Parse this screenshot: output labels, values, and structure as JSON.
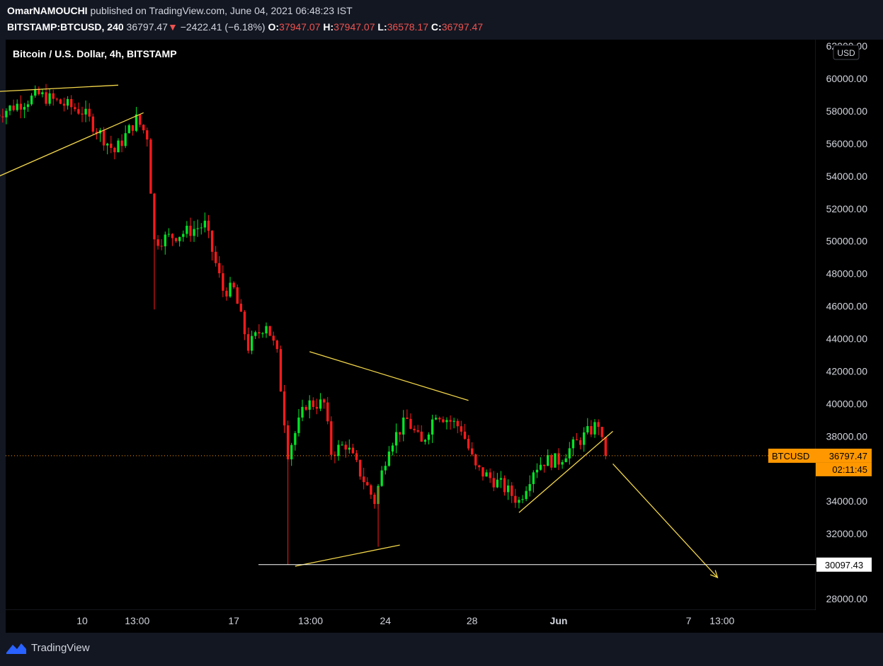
{
  "header": {
    "author": "OmarNAMOUCHI",
    "published_text": "published on TradingView.com, June 04, 2021 06:48:23 IST",
    "symbol": "BITSTAMP:BTCUSD, 240",
    "price": "36797.47",
    "change_arrow": "▼",
    "change": "−2422.41 (−6.18%)",
    "open_label": "O:",
    "open": "37947.07",
    "high_label": "H:",
    "high": "37947.07",
    "low_label": "L:",
    "low": "36578.17",
    "close_label": "C:",
    "close": "36797.47"
  },
  "footer": {
    "brand": "TradingView"
  },
  "colors": {
    "background": "#000000",
    "frame": "#131722",
    "up": "#26a69a",
    "up_candle": "#00e626",
    "down_candle": "#ff1a1a",
    "drawing": "#f2d64a",
    "price_label": "#ff9800",
    "support_line": "#ffffff"
  },
  "chart_data": {
    "type": "candlestick",
    "title": "Bitcoin / U.S. Dollar, 4h, BITSTAMP",
    "currency": "USD",
    "ylim": [
      27300,
      62400
    ],
    "y_ticks": [
      "28000.00",
      "30000.00",
      "32000.00",
      "34000.00",
      "36000.00",
      "38000.00",
      "40000.00",
      "42000.00",
      "44000.00",
      "46000.00",
      "48000.00",
      "50000.00",
      "52000.00",
      "54000.00",
      "56000.00",
      "58000.00",
      "60000.00",
      "62000.00"
    ],
    "x_ticks": [
      {
        "label": "10",
        "date": "2021-05-10T00:00"
      },
      {
        "label": "13:00",
        "date": "2021-05-12T13:00"
      },
      {
        "label": "17",
        "date": "2021-05-17T00:00"
      },
      {
        "label": "13:00",
        "date": "2021-05-20T13:00"
      },
      {
        "label": "24",
        "date": "2021-05-24T00:00"
      },
      {
        "label": "28",
        "date": "2021-05-28T00:00"
      },
      {
        "label": "Jun",
        "date": "2021-06-01T00:00"
      },
      {
        "label": "7",
        "date": "2021-06-07T00:00"
      },
      {
        "label": "13:00",
        "date": "2021-06-08T13:00"
      }
    ],
    "current_price": {
      "symbol": "BTCUSD",
      "price": "36797.47",
      "countdown": "02:11:45",
      "value": 36797.47
    },
    "support_level": {
      "label": "30097.43",
      "value": 30097.43
    },
    "key_prices": [
      {
        "date": "2021-05-06T00:00",
        "price": 57800
      },
      {
        "date": "2021-05-08T00:00",
        "price": 59000
      },
      {
        "date": "2021-05-10T00:00",
        "price": 58000
      },
      {
        "date": "2021-05-11T12:00",
        "price": 55500
      },
      {
        "date": "2021-05-12T12:00",
        "price": 57500
      },
      {
        "date": "2021-05-13T00:00",
        "price": 56500
      },
      {
        "date": "2021-05-13T08:00",
        "price": 50000
      },
      {
        "date": "2021-05-14T16:00",
        "price": 50500
      },
      {
        "date": "2021-05-15T16:00",
        "price": 51000
      },
      {
        "date": "2021-05-16T12:00",
        "price": 47000
      },
      {
        "date": "2021-05-17T00:00",
        "price": 47000
      },
      {
        "date": "2021-05-17T16:00",
        "price": 43500
      },
      {
        "date": "2021-05-18T12:00",
        "price": 45000
      },
      {
        "date": "2021-05-19T00:00",
        "price": 43000
      },
      {
        "date": "2021-05-19T12:00",
        "price": 37000
      },
      {
        "date": "2021-05-20T08:00",
        "price": 40000
      },
      {
        "date": "2021-05-21T04:00",
        "price": 40000
      },
      {
        "date": "2021-05-21T12:00",
        "price": 37000
      },
      {
        "date": "2021-05-22T04:00",
        "price": 37500
      },
      {
        "date": "2021-05-23T12:00",
        "price": 34000
      },
      {
        "date": "2021-05-24T04:00",
        "price": 37500
      },
      {
        "date": "2021-05-25T00:00",
        "price": 39000
      },
      {
        "date": "2021-05-25T16:00",
        "price": 37500
      },
      {
        "date": "2021-05-26T08:00",
        "price": 39500
      },
      {
        "date": "2021-05-27T12:00",
        "price": 38500
      },
      {
        "date": "2021-05-28T04:00",
        "price": 36000
      },
      {
        "date": "2021-05-29T08:00",
        "price": 35000
      },
      {
        "date": "2021-05-30T04:00",
        "price": 34000
      },
      {
        "date": "2021-05-30T20:00",
        "price": 36000
      },
      {
        "date": "2021-05-31T08:00",
        "price": 36500
      },
      {
        "date": "2021-06-01T00:00",
        "price": 36500
      },
      {
        "date": "2021-06-01T08:00",
        "price": 37000
      },
      {
        "date": "2021-06-02T04:00",
        "price": 38000
      },
      {
        "date": "2021-06-02T20:00",
        "price": 38800
      },
      {
        "date": "2021-06-03T00:00",
        "price": 37947.07
      },
      {
        "date": "2021-06-03T04:00",
        "price": 36797.47
      }
    ],
    "drawings": [
      {
        "kind": "line",
        "points": [
          {
            "date": "2021-05-06T00:00",
            "price": 59200
          },
          {
            "date": "2021-05-11T16:00",
            "price": 59600
          }
        ]
      },
      {
        "kind": "line",
        "points": [
          {
            "date": "2021-05-06T00:00",
            "price": 53900
          },
          {
            "date": "2021-05-12T20:00",
            "price": 57900
          }
        ]
      },
      {
        "kind": "line",
        "points": [
          {
            "date": "2021-05-20T12:00",
            "price": 43200
          },
          {
            "date": "2021-05-27T20:00",
            "price": 40200
          }
        ]
      },
      {
        "kind": "line",
        "points": [
          {
            "date": "2021-05-19T20:00",
            "price": 30000
          },
          {
            "date": "2021-05-24T16:00",
            "price": 31300
          }
        ]
      },
      {
        "kind": "line",
        "points": [
          {
            "date": "2021-05-30T04:00",
            "price": 33300
          },
          {
            "date": "2021-06-03T12:00",
            "price": 38300
          }
        ]
      },
      {
        "kind": "arrow",
        "points": [
          {
            "date": "2021-06-03T12:00",
            "price": 36300
          },
          {
            "date": "2021-06-08T08:00",
            "price": 29300
          }
        ]
      }
    ]
  }
}
